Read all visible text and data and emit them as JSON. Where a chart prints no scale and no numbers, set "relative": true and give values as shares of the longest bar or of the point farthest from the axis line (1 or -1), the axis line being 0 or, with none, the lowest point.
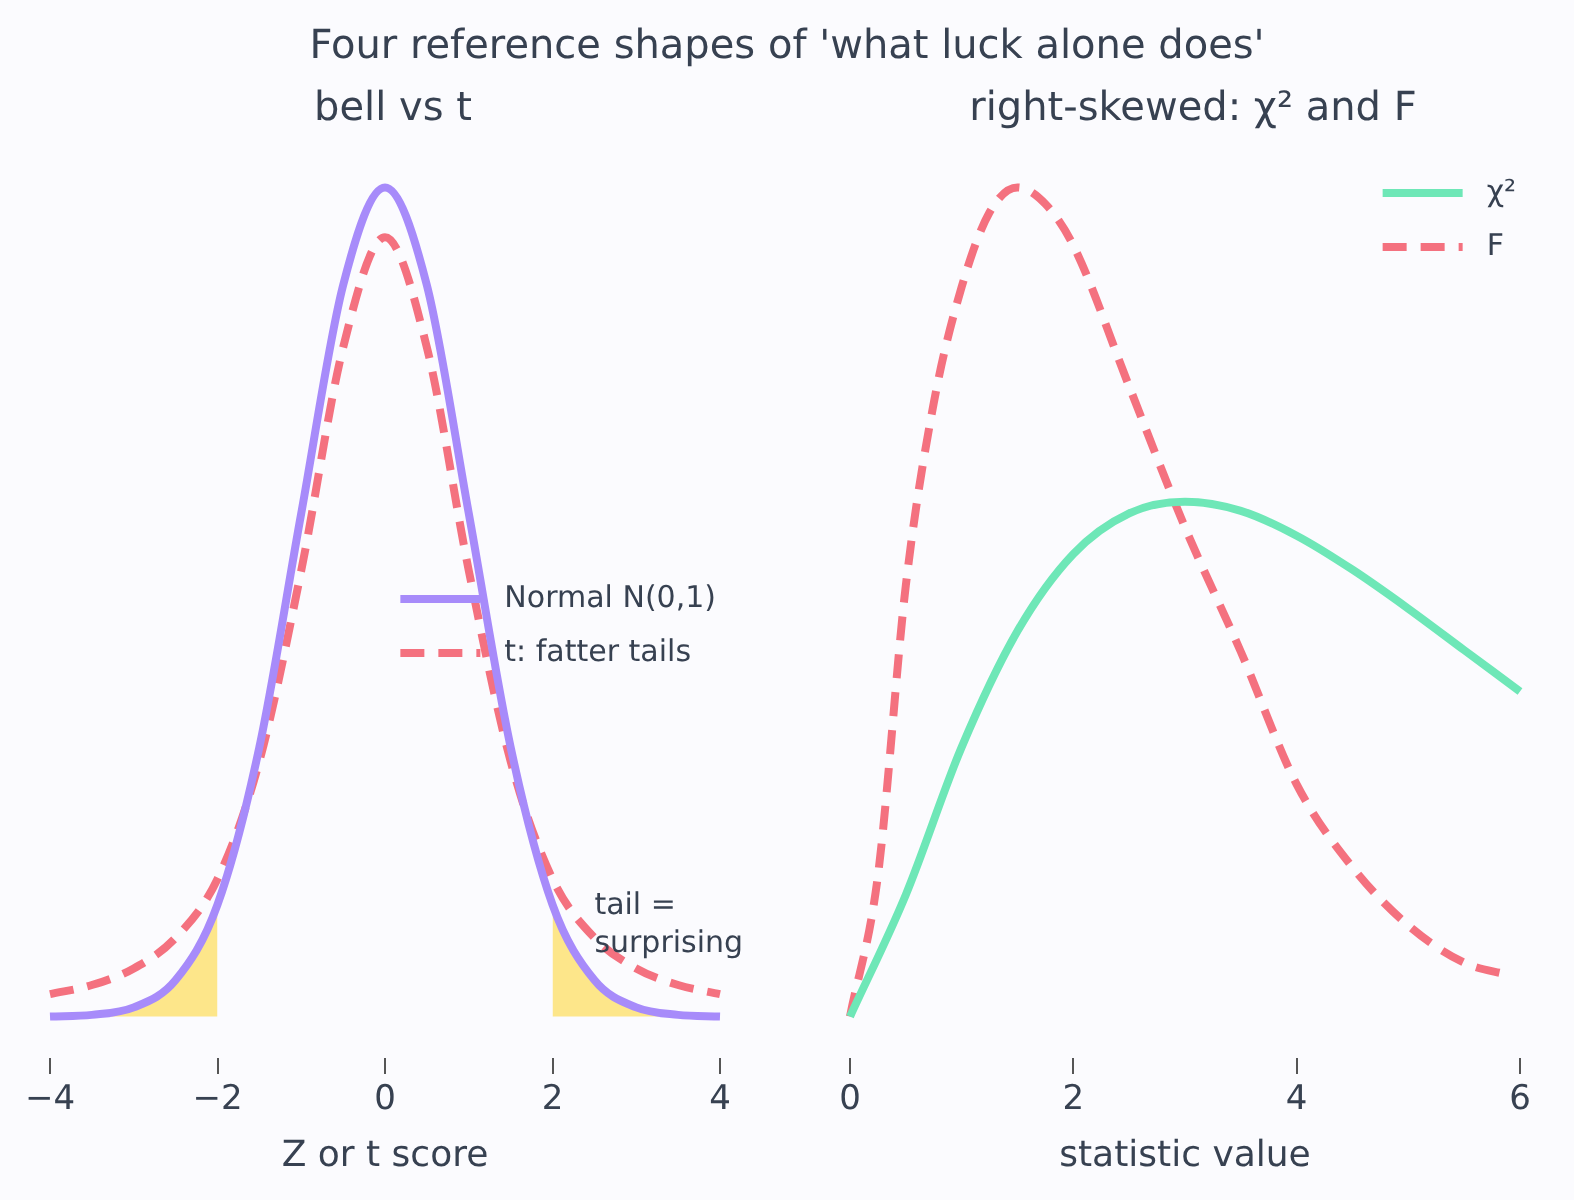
{
  "chart_data": [
    {
      "type": "line",
      "title": "Four reference shapes of 'what luck alone does'",
      "subtitle": "bell vs t",
      "xlabel": "Z or t score",
      "relative": true,
      "xlim": [
        -4,
        4
      ],
      "xticks": [
        -4,
        -2,
        0,
        2,
        4
      ],
      "x": [
        -4,
        -3.5,
        -3,
        -2.5,
        -2,
        -1.5,
        -1,
        -0.5,
        0,
        0.5,
        1,
        1.5,
        2,
        2.5,
        3,
        3.5,
        4
      ],
      "series": [
        {
          "name": "Normal N(0,1)",
          "color": "#a78bfa",
          "line_style": "solid",
          "values": [
            0,
            0.002,
            0.011,
            0.044,
            0.135,
            0.325,
            0.607,
            0.882,
            1,
            0.882,
            0.607,
            0.325,
            0.135,
            0.044,
            0.011,
            0.002,
            0
          ]
        },
        {
          "name": "t: fatter tails",
          "color": "#f4717f",
          "line_style": "dashed",
          "values": [
            0.027,
            0.038,
            0.058,
            0.095,
            0.166,
            0.308,
            0.538,
            0.807,
            0.94,
            0.807,
            0.538,
            0.308,
            0.166,
            0.095,
            0.058,
            0.038,
            0.027
          ]
        },
        {
          "type": "area",
          "color": "#fde68a",
          "x": [
            -4,
            -3.5,
            -3,
            -2.5,
            -2
          ],
          "values": [
            0,
            0.002,
            0.011,
            0.044,
            0.135
          ]
        },
        {
          "type": "area",
          "color": "#fde68a",
          "x": [
            2,
            2.5,
            3,
            3.5,
            4
          ],
          "values": [
            0.135,
            0.044,
            0.011,
            0.002,
            0
          ]
        }
      ],
      "annotations": [
        {
          "text": "tail =\nsurprising",
          "x": 2.5,
          "y": 0.11
        }
      ],
      "legend": "center right",
      "marker": "none",
      "grid": false
    },
    {
      "type": "line",
      "subtitle": "right-skewed: χ² and F",
      "xlabel": "statistic value",
      "relative": true,
      "xlim": [
        0,
        6
      ],
      "xticks": [
        0,
        2,
        4,
        6
      ],
      "series": [
        {
          "name": "χ²",
          "color": "#6ee7b7",
          "line_style": "solid",
          "x": [
            0,
            0.5,
            1,
            1.5,
            2,
            2.5,
            3,
            3.5,
            4,
            4.5,
            5,
            5.5,
            6
          ],
          "values": [
            0,
            0.147,
            0.325,
            0.465,
            0.558,
            0.607,
            0.621,
            0.61,
            0.58,
            0.539,
            0.492,
            0.442,
            0.392
          ]
        },
        {
          "name": "F",
          "color": "#f4717f",
          "line_style": "dashed",
          "x": [
            0,
            0.25,
            0.5,
            0.75,
            1,
            1.25,
            1.5,
            1.75,
            2,
            2.5,
            3,
            3.5,
            4,
            4.5,
            5,
            5.5,
            5.9
          ],
          "values": [
            0,
            0.17,
            0.52,
            0.74,
            0.88,
            0.97,
            1,
            0.98,
            0.93,
            0.76,
            0.59,
            0.44,
            0.28,
            0.18,
            0.11,
            0.065,
            0.05
          ]
        }
      ],
      "legend": "top right",
      "marker": "none",
      "grid": false
    }
  ]
}
